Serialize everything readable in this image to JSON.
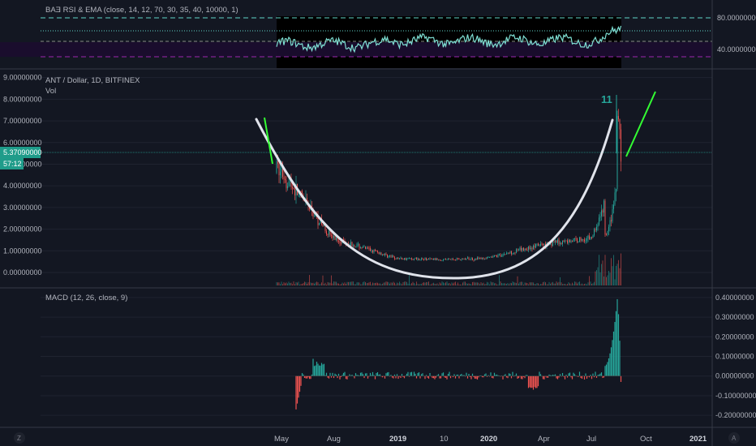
{
  "theme": {
    "background": "#131722",
    "grid": "#1f2330",
    "separator": "#363a45",
    "text": "#b2b5be",
    "up": "#26a69a",
    "down": "#ef5350",
    "rsi_line": "#7fe0d4",
    "rsi_band": "#1a0d2e",
    "curve": "#e0e3eb",
    "annotation_green": "#33ff33",
    "price_tag_bg": "#1f9c8a"
  },
  "rsi_panel": {
    "title": "BAƎ RSI & EMA (close, 14, 12, 70, 30, 35, 40, 10000, 1)",
    "ticks": [
      {
        "value": 80,
        "label": "80.00000000"
      },
      {
        "value": 40,
        "label": "40.00000000"
      }
    ],
    "levels": {
      "upper_dashed": 80,
      "dotted": 65,
      "lower_gray": 50,
      "band_low": 30,
      "band_high": 45
    }
  },
  "price_panel": {
    "title": "ANT / Dollar, 1D, BITFINEX",
    "vol_label": "Vol",
    "ticks": [
      {
        "value": 9,
        "label": "9.00000000"
      },
      {
        "value": 8,
        "label": "8.00000000"
      },
      {
        "value": 7,
        "label": "7.00000000"
      },
      {
        "value": 6,
        "label": "6.00000000"
      },
      {
        "value": 5,
        "label": "5.00000000"
      },
      {
        "value": 4,
        "label": "4.00000000"
      },
      {
        "value": 3,
        "label": "3.00000000"
      },
      {
        "value": 2,
        "label": "2.00000000"
      },
      {
        "value": 1,
        "label": "1.00000000"
      },
      {
        "value": 0,
        "label": "0.00000000"
      }
    ],
    "current_price": {
      "value": 5.3709,
      "label": "5.37090000",
      "countdown": "57:12"
    },
    "annotation_count": "11"
  },
  "macd_panel": {
    "title": "MACD (12, 26, close, 9)",
    "ticks": [
      {
        "value": 0.4,
        "label": "0.40000000"
      },
      {
        "value": 0.3,
        "label": "0.30000000"
      },
      {
        "value": 0.2,
        "label": "0.20000000"
      },
      {
        "value": 0.1,
        "label": "0.10000000"
      },
      {
        "value": 0.0,
        "label": "0.00000000"
      },
      {
        "value": -0.1,
        "label": "-0.10000000"
      },
      {
        "value": -0.2,
        "label": "-0.20000000"
      }
    ]
  },
  "time_axis": {
    "labels": [
      {
        "label": "May",
        "bold": false
      },
      {
        "label": "Aug",
        "bold": false
      },
      {
        "label": "2019",
        "bold": true
      },
      {
        "label": "10",
        "bold": false
      },
      {
        "label": "2020",
        "bold": true
      },
      {
        "label": "Apr",
        "bold": false
      },
      {
        "label": "Jul",
        "bold": false
      },
      {
        "label": "Oct",
        "bold": false
      },
      {
        "label": "2021",
        "bold": true
      }
    ],
    "left_button": "Z",
    "right_button": "A"
  },
  "chart_data": {
    "type": "candlestick",
    "symbol": "ANT / Dollar",
    "interval": "1D",
    "exchange": "BITFINEX",
    "price_series": {
      "x": [
        "May",
        "Aug",
        "2019",
        "10",
        "2020",
        "Apr",
        "Jul"
      ],
      "close": [
        4.8,
        1.6,
        0.6,
        0.55,
        0.6,
        1.2,
        5.37
      ]
    },
    "last_high": 8.2,
    "ylim": [
      -0.4,
      9.1
    ],
    "rsi_ylim": [
      20,
      100
    ],
    "macd_ylim": [
      -0.22,
      0.42
    ],
    "macd_peak": 0.36,
    "macd_trough": -0.17,
    "overlays": [
      "cup curve (hand-drawn white arc)",
      "green breakout trend lines"
    ]
  }
}
